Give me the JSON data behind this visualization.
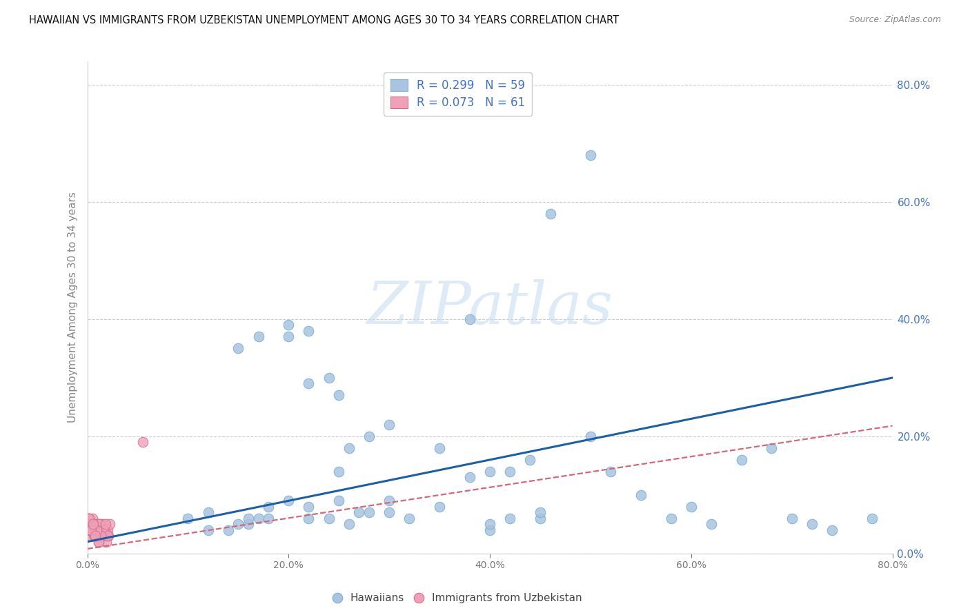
{
  "title": "HAWAIIAN VS IMMIGRANTS FROM UZBEKISTAN UNEMPLOYMENT AMONG AGES 30 TO 34 YEARS CORRELATION CHART",
  "source": "Source: ZipAtlas.com",
  "ylabel": "Unemployment Among Ages 30 to 34 years",
  "blue_scatter_color": "#a8c4e0",
  "blue_scatter_edge": "#7aafd4",
  "blue_line_color": "#1a5fa8",
  "pink_scatter_color": "#f0a0b8",
  "pink_scatter_edge": "#d4708a",
  "pink_line_color": "#d46878",
  "right_axis_color": "#4472c4",
  "legend_text_color": "#4472c4",
  "grid_color": "#cccccc",
  "watermark_color": "#c8ddf0",
  "xlim": [
    0.0,
    0.8
  ],
  "ylim": [
    0.0,
    0.84
  ],
  "xticks": [
    0.0,
    0.2,
    0.4,
    0.6,
    0.8
  ],
  "yticks_right": [
    0.0,
    0.2,
    0.4,
    0.6,
    0.8
  ],
  "blue_R": "0.299",
  "blue_N": "59",
  "pink_R": "0.073",
  "pink_N": "61",
  "blue_trend_y": [
    0.02,
    0.3
  ],
  "pink_trend_y": [
    0.008,
    0.218
  ],
  "hawaiians_x": [
    0.38,
    0.46,
    0.5,
    0.15,
    0.17,
    0.2,
    0.2,
    0.22,
    0.22,
    0.24,
    0.25,
    0.25,
    0.26,
    0.28,
    0.3,
    0.3,
    0.35,
    0.38,
    0.4,
    0.4,
    0.42,
    0.44,
    0.45,
    0.5,
    0.52,
    0.55,
    0.58,
    0.6,
    0.62,
    0.65,
    0.68,
    0.7,
    0.72,
    0.74,
    0.78,
    0.1,
    0.12,
    0.12,
    0.14,
    0.15,
    0.16,
    0.16,
    0.17,
    0.18,
    0.18,
    0.2,
    0.22,
    0.22,
    0.24,
    0.25,
    0.26,
    0.27,
    0.28,
    0.3,
    0.32,
    0.35,
    0.4,
    0.42,
    0.45
  ],
  "hawaiians_y": [
    0.4,
    0.58,
    0.68,
    0.35,
    0.37,
    0.37,
    0.39,
    0.38,
    0.29,
    0.3,
    0.27,
    0.14,
    0.18,
    0.2,
    0.22,
    0.09,
    0.18,
    0.13,
    0.14,
    0.04,
    0.14,
    0.16,
    0.06,
    0.2,
    0.14,
    0.1,
    0.06,
    0.08,
    0.05,
    0.16,
    0.18,
    0.06,
    0.05,
    0.04,
    0.06,
    0.06,
    0.04,
    0.07,
    0.04,
    0.05,
    0.05,
    0.06,
    0.06,
    0.08,
    0.06,
    0.09,
    0.08,
    0.06,
    0.06,
    0.09,
    0.05,
    0.07,
    0.07,
    0.07,
    0.06,
    0.08,
    0.05,
    0.06,
    0.07
  ],
  "uzbekistan_x": [
    0.0,
    0.002,
    0.003,
    0.004,
    0.005,
    0.006,
    0.007,
    0.008,
    0.009,
    0.01,
    0.01,
    0.012,
    0.013,
    0.014,
    0.015,
    0.016,
    0.017,
    0.018,
    0.019,
    0.02,
    0.021,
    0.022,
    0.001,
    0.003,
    0.005,
    0.007,
    0.009,
    0.011,
    0.013,
    0.015,
    0.002,
    0.004,
    0.006,
    0.008,
    0.01,
    0.012,
    0.014,
    0.016,
    0.018,
    0.02,
    0.001,
    0.003,
    0.005,
    0.007,
    0.009,
    0.011,
    0.013,
    0.001,
    0.003,
    0.005,
    0.007,
    0.009,
    0.011,
    0.001,
    0.003,
    0.005,
    0.002,
    0.004,
    0.006,
    0.008,
    0.055
  ],
  "uzbekistan_y": [
    0.04,
    0.05,
    0.03,
    0.04,
    0.06,
    0.04,
    0.05,
    0.03,
    0.04,
    0.05,
    0.03,
    0.04,
    0.05,
    0.03,
    0.04,
    0.05,
    0.03,
    0.04,
    0.02,
    0.04,
    0.03,
    0.05,
    0.06,
    0.04,
    0.05,
    0.03,
    0.04,
    0.05,
    0.03,
    0.04,
    0.06,
    0.04,
    0.05,
    0.03,
    0.04,
    0.05,
    0.03,
    0.04,
    0.05,
    0.03,
    0.06,
    0.04,
    0.05,
    0.03,
    0.04,
    0.02,
    0.03,
    0.05,
    0.04,
    0.05,
    0.03,
    0.04,
    0.02,
    0.05,
    0.04,
    0.05,
    0.06,
    0.04,
    0.05,
    0.03,
    0.19
  ]
}
